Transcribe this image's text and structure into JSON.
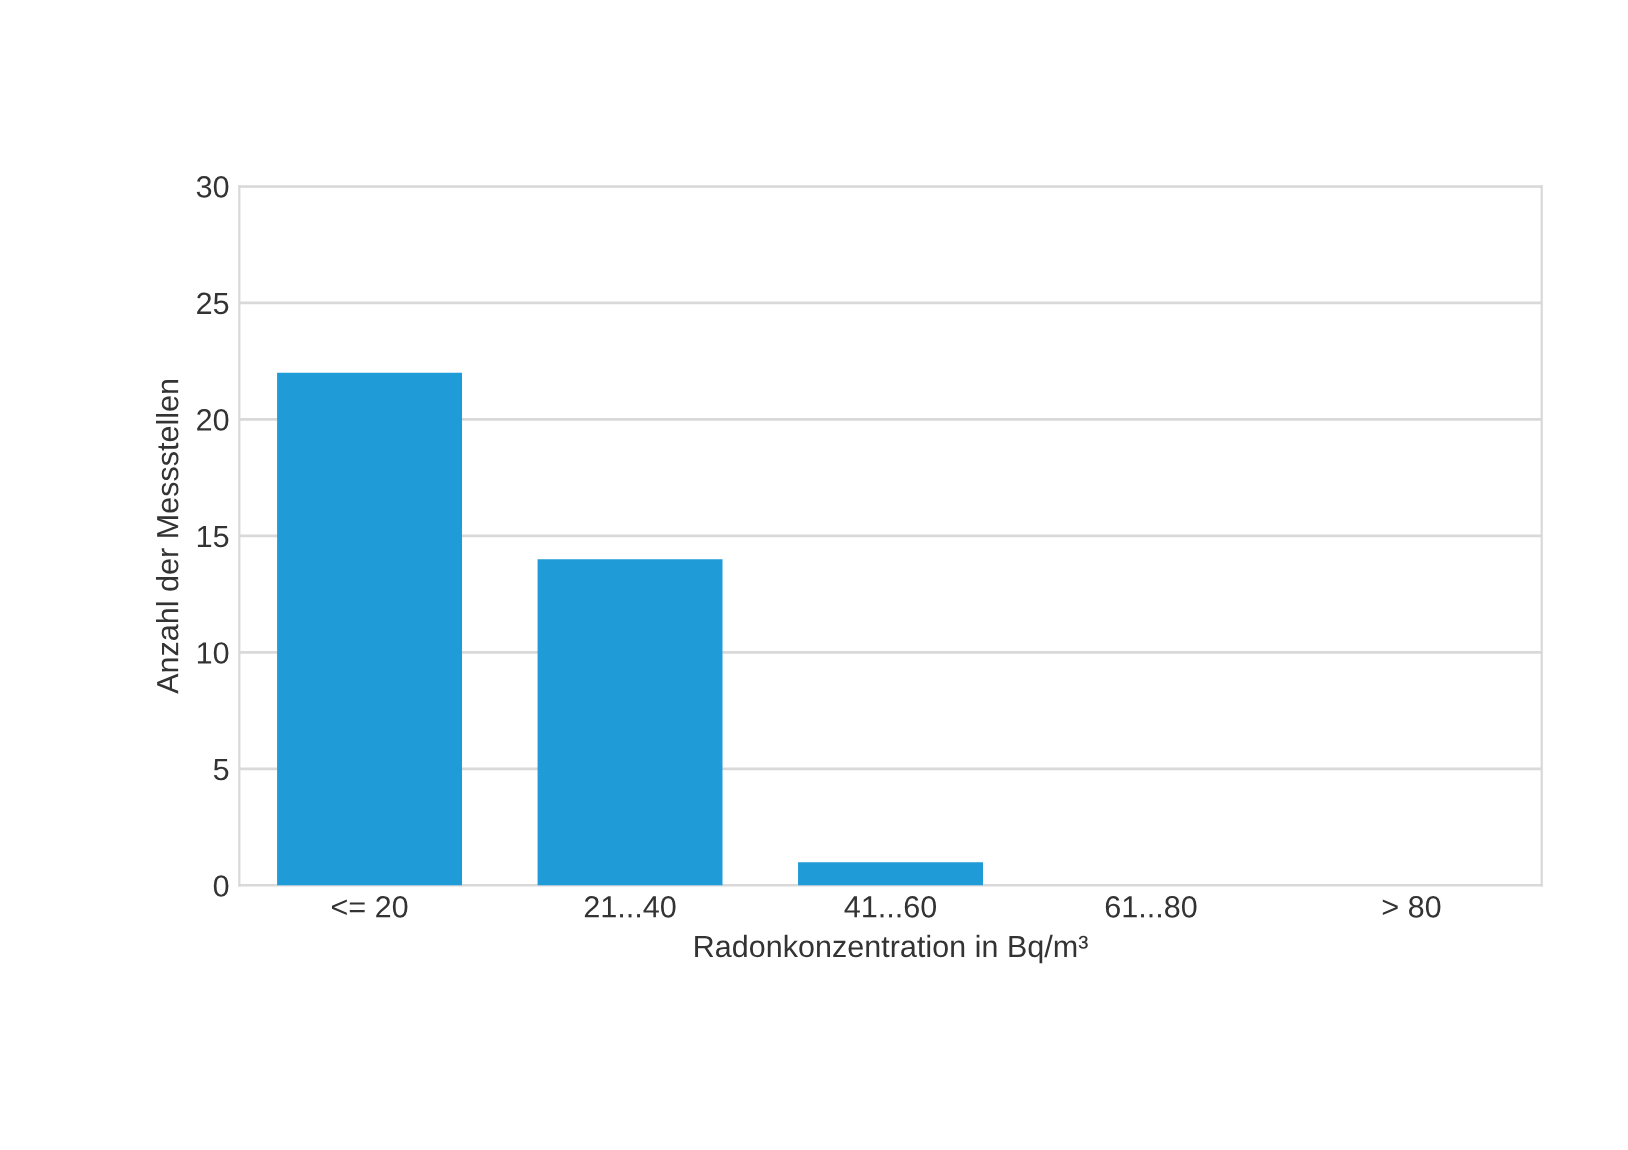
{
  "chart_data": {
    "type": "bar",
    "xlabel": "Radonkonzentration in Bq/m³",
    "ylabel": "Anzahl der Messstellen",
    "categories": [
      "<= 20",
      "21...40",
      "41...60",
      "61...80",
      "> 80"
    ],
    "values": [
      22,
      14,
      1,
      0,
      0
    ],
    "color": "#1f9bd7",
    "ylim": [
      0,
      30
    ],
    "yticks": [
      0,
      5,
      10,
      15,
      20,
      25,
      30
    ],
    "grid": "y"
  }
}
